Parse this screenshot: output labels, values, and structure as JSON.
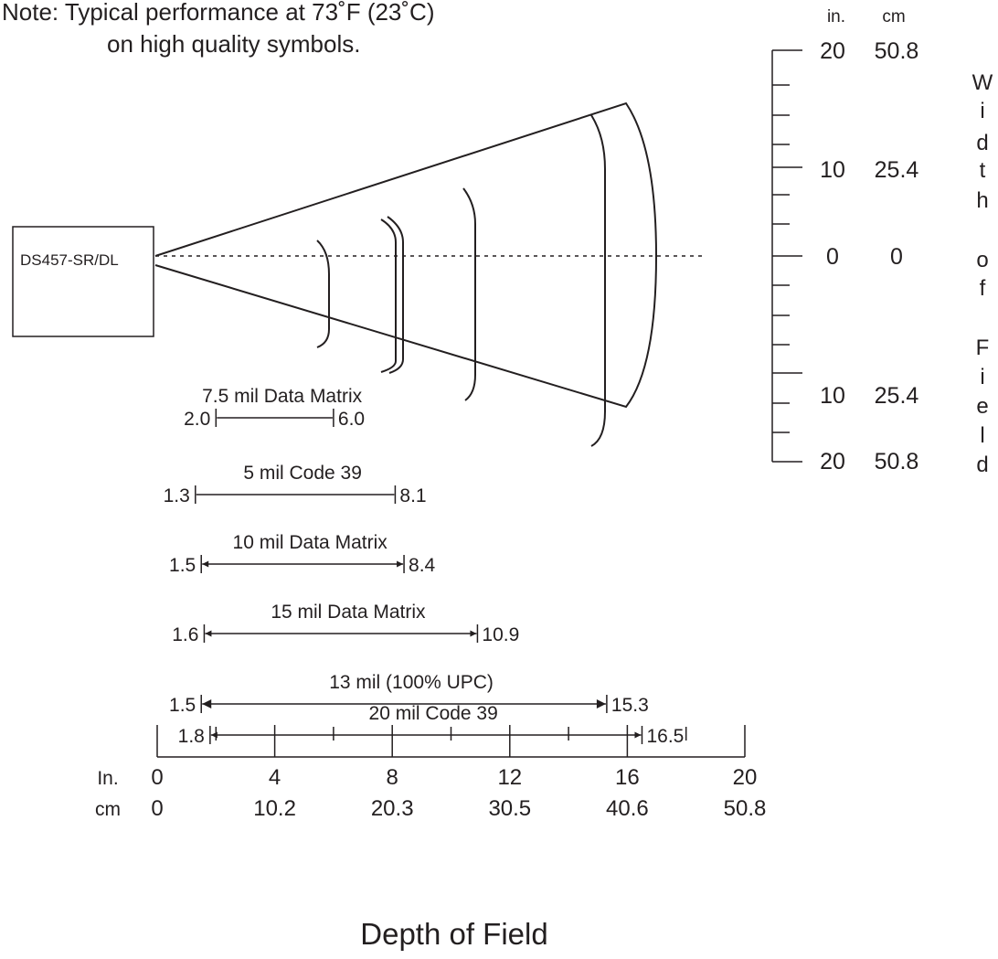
{
  "note": {
    "line1": "Note:  Typical performance at 73˚F (23˚C)",
    "line2": "on high quality symbols."
  },
  "scanner": {
    "label": "DS457-SR/DL"
  },
  "width_axis": {
    "unit_in": "in.",
    "unit_cm": "cm",
    "ticks_in": [
      "20",
      "10",
      "0",
      "10",
      "20"
    ],
    "ticks_cm": [
      "50.8",
      "25.4",
      "0",
      "25.4",
      "50.8"
    ],
    "title_letters": [
      "W",
      "i",
      "d",
      "t",
      "h",
      "",
      "o",
      "f",
      "",
      "F",
      "i",
      "e",
      "l",
      "d"
    ]
  },
  "depth_axis": {
    "unit_in": "In.",
    "unit_cm": "cm",
    "ticks_in": [
      "0",
      "4",
      "8",
      "12",
      "16",
      "20"
    ],
    "ticks_cm": [
      "0",
      "10.2",
      "20.3",
      "30.5",
      "40.6",
      "50.8"
    ],
    "title": "Depth of Field"
  },
  "chart_data": {
    "type": "range",
    "unit": "in.",
    "xlim": [
      0,
      20
    ],
    "ranges": [
      {
        "label": "7.5 mil Data Matrix",
        "near": "2.0",
        "far": "6.0"
      },
      {
        "label": "5 mil Code 39",
        "near": "1.3",
        "far": "8.1"
      },
      {
        "label": "10 mil Data Matrix",
        "near": "1.5",
        "far": "8.4"
      },
      {
        "label": "15 mil Data Matrix",
        "near": "1.6",
        "far": "10.9"
      },
      {
        "label": "13 mil (100% UPC)",
        "near": "1.5",
        "far": "15.3"
      },
      {
        "label": "20 mil Code 39",
        "near": "1.8",
        "far": "16.5"
      }
    ]
  }
}
